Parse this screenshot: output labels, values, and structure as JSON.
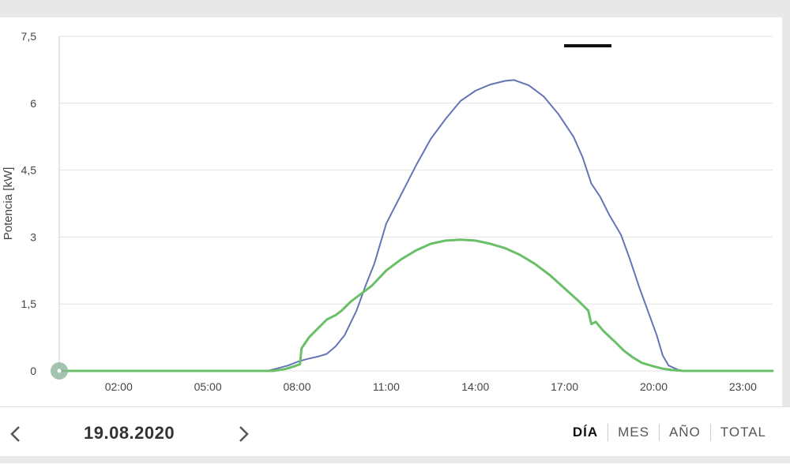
{
  "chart_data": {
    "type": "line",
    "title": "",
    "xlabel": "",
    "ylabel": "Potencia [kW]",
    "xlim": [
      0,
      24
    ],
    "ylim": [
      0,
      7.5
    ],
    "y_ticks": [
      0,
      1.5,
      3,
      4.5,
      6,
      7.5
    ],
    "y_tick_labels": [
      "0",
      "1,5",
      "3",
      "4,5",
      "6",
      "7,5"
    ],
    "x_ticks": [
      2,
      5,
      8,
      11,
      14,
      17,
      20,
      23
    ],
    "x_tick_labels": [
      "02:00",
      "05:00",
      "08:00",
      "11:00",
      "14:00",
      "17:00",
      "20:00",
      "23:00"
    ],
    "grid": "horizontal",
    "series": [
      {
        "color": "#6574b4",
        "points": [
          [
            0,
            0
          ],
          [
            7,
            0
          ],
          [
            7.3,
            0.05
          ],
          [
            7.7,
            0.12
          ],
          [
            8,
            0.2
          ],
          [
            8.3,
            0.26
          ],
          [
            8.7,
            0.32
          ],
          [
            9,
            0.38
          ],
          [
            9.3,
            0.55
          ],
          [
            9.6,
            0.8
          ],
          [
            10,
            1.35
          ],
          [
            10.3,
            1.9
          ],
          [
            10.6,
            2.4
          ],
          [
            11,
            3.3
          ],
          [
            11.5,
            3.95
          ],
          [
            12,
            4.6
          ],
          [
            12.5,
            5.2
          ],
          [
            13,
            5.65
          ],
          [
            13.5,
            6.05
          ],
          [
            14,
            6.28
          ],
          [
            14.5,
            6.42
          ],
          [
            15,
            6.5
          ],
          [
            15.3,
            6.52
          ],
          [
            15.8,
            6.4
          ],
          [
            16.3,
            6.15
          ],
          [
            16.8,
            5.75
          ],
          [
            17.3,
            5.25
          ],
          [
            17.6,
            4.8
          ],
          [
            17.9,
            4.2
          ],
          [
            18.2,
            3.9
          ],
          [
            18.5,
            3.5
          ],
          [
            18.9,
            3.05
          ],
          [
            19.2,
            2.5
          ],
          [
            19.5,
            1.9
          ],
          [
            19.8,
            1.35
          ],
          [
            20.1,
            0.8
          ],
          [
            20.3,
            0.35
          ],
          [
            20.5,
            0.12
          ],
          [
            20.8,
            0.03
          ],
          [
            21,
            0
          ],
          [
            24,
            0
          ]
        ]
      },
      {
        "color": "#6abf69",
        "points": [
          [
            0,
            0
          ],
          [
            7.2,
            0
          ],
          [
            7.6,
            0.04
          ],
          [
            7.9,
            0.1
          ],
          [
            8.1,
            0.15
          ],
          [
            8.15,
            0.5
          ],
          [
            8.4,
            0.75
          ],
          [
            8.7,
            0.95
          ],
          [
            9,
            1.15
          ],
          [
            9.3,
            1.25
          ],
          [
            9.5,
            1.35
          ],
          [
            9.8,
            1.55
          ],
          [
            10.2,
            1.75
          ],
          [
            10.5,
            1.9
          ],
          [
            11,
            2.25
          ],
          [
            11.5,
            2.5
          ],
          [
            12,
            2.7
          ],
          [
            12.5,
            2.85
          ],
          [
            13,
            2.92
          ],
          [
            13.5,
            2.94
          ],
          [
            14,
            2.92
          ],
          [
            14.5,
            2.85
          ],
          [
            15,
            2.75
          ],
          [
            15.5,
            2.6
          ],
          [
            16,
            2.4
          ],
          [
            16.5,
            2.15
          ],
          [
            17,
            1.85
          ],
          [
            17.5,
            1.55
          ],
          [
            17.8,
            1.35
          ],
          [
            17.9,
            1.05
          ],
          [
            18.05,
            1.1
          ],
          [
            18.3,
            0.9
          ],
          [
            18.7,
            0.65
          ],
          [
            19,
            0.45
          ],
          [
            19.3,
            0.3
          ],
          [
            19.6,
            0.18
          ],
          [
            20,
            0.1
          ],
          [
            20.3,
            0.05
          ],
          [
            20.6,
            0.02
          ],
          [
            21,
            0
          ],
          [
            24,
            0
          ]
        ]
      }
    ]
  },
  "footer": {
    "date": "19.08.2020",
    "tabs": [
      {
        "label": "DÍA",
        "active": true
      },
      {
        "label": "MES",
        "active": false
      },
      {
        "label": "AÑO",
        "active": false
      },
      {
        "label": "TOTAL",
        "active": false
      }
    ]
  },
  "colors": {
    "background": "#e8e8e8",
    "grid": "#e3e3e3",
    "axis_text": "#444444"
  }
}
